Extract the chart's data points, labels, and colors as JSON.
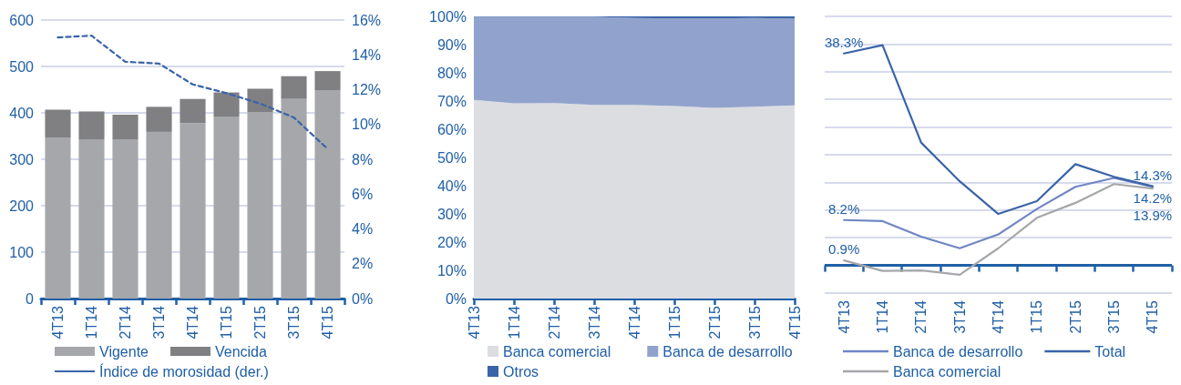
{
  "chart_data": [
    {
      "type": "bar",
      "categories": [
        "4T13",
        "1T14",
        "2T14",
        "3T14",
        "4T14",
        "1T15",
        "2T15",
        "3T15",
        "4T15"
      ],
      "stacked": true,
      "series": [
        {
          "name": "Vigente",
          "color": "#a6a7aa",
          "values": [
            347,
            343,
            343,
            359,
            378,
            392,
            402,
            430,
            449
          ]
        },
        {
          "name": "Vencida",
          "color": "#808083",
          "values": [
            60,
            60,
            53,
            54,
            52,
            52,
            50,
            49,
            41
          ]
        },
        {
          "name": "Índice de morosidad (der.)",
          "type": "line",
          "axis": "y2",
          "color": "#3a64a8",
          "line_style": "dashed",
          "marker": "none",
          "values": [
            15.0,
            15.1,
            13.6,
            13.5,
            12.3,
            11.8,
            11.2,
            10.4,
            8.6
          ]
        }
      ],
      "ylim": [
        0,
        600
      ],
      "yticks": [
        0,
        100,
        200,
        300,
        400,
        500,
        600
      ],
      "y2lim": [
        0,
        16
      ],
      "y2ticks": [
        {
          "value": 0,
          "label": "0%"
        },
        {
          "value": 2,
          "label": "2%"
        },
        {
          "value": 4,
          "label": "4%"
        },
        {
          "value": 6,
          "label": "6%"
        },
        {
          "value": 8,
          "label": "8%"
        },
        {
          "value": 10,
          "label": "10%"
        },
        {
          "value": 12,
          "label": "12%"
        },
        {
          "value": 14,
          "label": "14%"
        },
        {
          "value": 16,
          "label": "16%"
        }
      ],
      "grid": "y",
      "legend": "bottom"
    },
    {
      "type": "area",
      "categories": [
        "4T13",
        "1T14",
        "2T14",
        "3T14",
        "4T14",
        "1T15",
        "2T15",
        "3T15",
        "4T15"
      ],
      "stacked": true,
      "series": [
        {
          "name": "Banca comercial",
          "color": "#dcdde0",
          "values": [
            70.4,
            69.2,
            69.3,
            68.6,
            68.6,
            68.2,
            67.6,
            68.0,
            68.5
          ]
        },
        {
          "name": "Banca de desarrollo",
          "color": "#91a3cd",
          "values": [
            29.4,
            30.6,
            30.5,
            31.2,
            30.8,
            31.1,
            31.7,
            31.4,
            30.7
          ]
        },
        {
          "name": "Otros",
          "color": "#3a64a8",
          "values": [
            0.2,
            0.2,
            0.2,
            0.2,
            0.6,
            0.7,
            0.7,
            0.6,
            0.8
          ]
        }
      ],
      "ylim": [
        0,
        100
      ],
      "yticks": [
        {
          "value": 0,
          "label": "0%"
        },
        {
          "value": 10,
          "label": "10%"
        },
        {
          "value": 20,
          "label": "20%"
        },
        {
          "value": 30,
          "label": "30%"
        },
        {
          "value": 40,
          "label": "40%"
        },
        {
          "value": 50,
          "label": "50%"
        },
        {
          "value": 60,
          "label": "60%"
        },
        {
          "value": 70,
          "label": "70%"
        },
        {
          "value": 80,
          "label": "80%"
        },
        {
          "value": 90,
          "label": "90%"
        },
        {
          "value": 100,
          "label": "100%"
        }
      ],
      "legend": "bottom"
    },
    {
      "type": "line",
      "categories": [
        "4T13",
        "1T14",
        "2T14",
        "3T14",
        "4T14",
        "1T15",
        "2T15",
        "3T15",
        "4T15"
      ],
      "series": [
        {
          "name": "Banca de desarrollo",
          "color": "#6f86c4",
          "values": [
            8.2,
            8.0,
            5.2,
            3.1,
            5.6,
            10.2,
            14.2,
            15.8,
            14.2
          ],
          "value_labels": [
            "8.2%",
            null,
            null,
            null,
            null,
            null,
            null,
            null,
            "14.2%"
          ]
        },
        {
          "name": "Total",
          "color": "#3a64a8",
          "values": [
            38.3,
            39.8,
            22.2,
            15.2,
            9.3,
            11.6,
            18.3,
            16.0,
            14.3
          ],
          "value_labels": [
            "38.3%",
            null,
            null,
            null,
            null,
            null,
            null,
            null,
            "14.3%"
          ]
        },
        {
          "name": "Banca comercial",
          "color": "#a6a7aa",
          "values": [
            0.9,
            -1.0,
            -0.9,
            -1.7,
            3.1,
            8.6,
            11.3,
            14.7,
            13.9
          ],
          "value_labels": [
            "0.9%",
            null,
            null,
            null,
            null,
            null,
            null,
            null,
            "13.9%"
          ]
        }
      ],
      "ylim": [
        -5,
        45
      ],
      "yticks": [
        {
          "value": -5,
          "label": null
        },
        {
          "value": 0,
          "label": null
        },
        {
          "value": 5,
          "label": null
        },
        {
          "value": 10,
          "label": null
        },
        {
          "value": 15,
          "label": null
        },
        {
          "value": 20,
          "label": null
        },
        {
          "value": 25,
          "label": null
        },
        {
          "value": 30,
          "label": null
        },
        {
          "value": 35,
          "label": null
        },
        {
          "value": 40,
          "label": null
        },
        {
          "value": 45,
          "label": null
        }
      ],
      "ref_lines": [
        {
          "axis": "y",
          "value": 0,
          "color": "#1f5fa6"
        }
      ],
      "grid": "y",
      "legend": "bottom",
      "tick_labels": "x"
    }
  ]
}
